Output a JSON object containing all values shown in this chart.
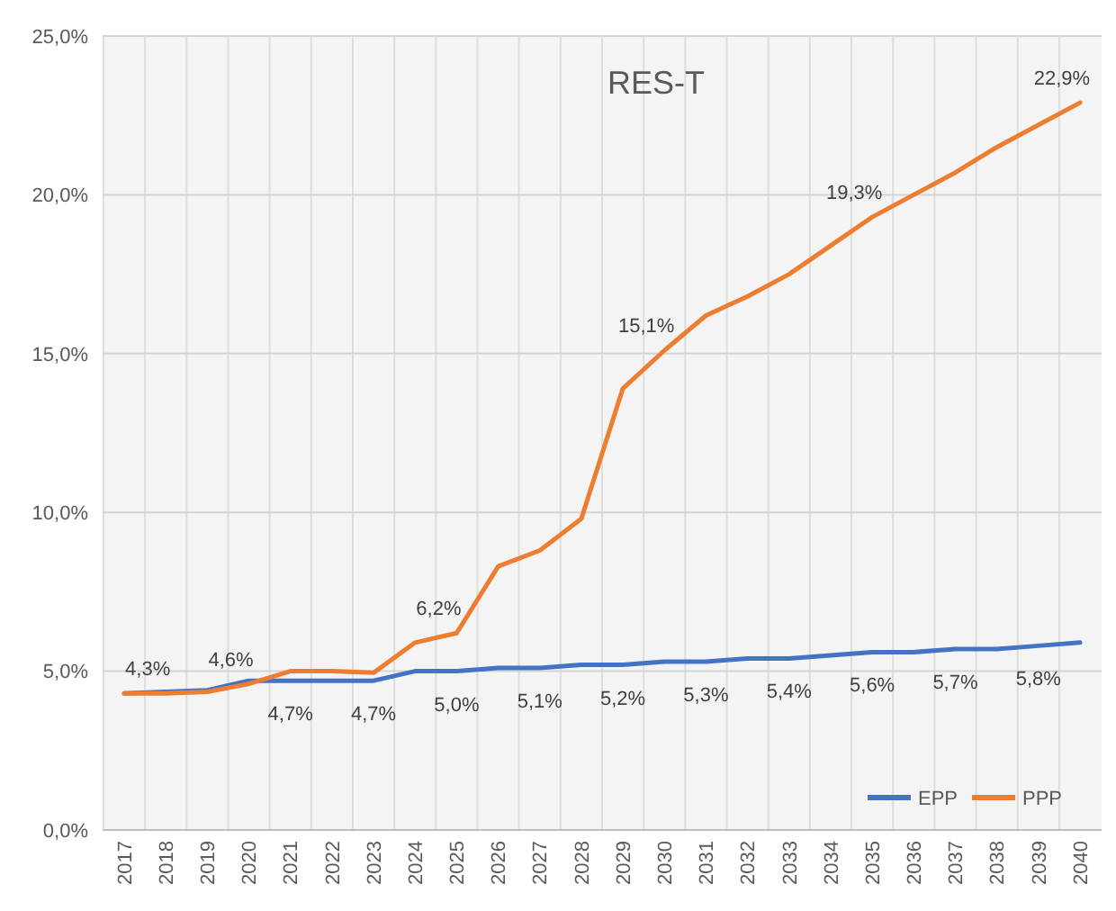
{
  "chart_data": {
    "type": "line",
    "annotations": [
      "RES-T"
    ],
    "categories": [
      "2017",
      "2018",
      "2019",
      "2020",
      "2021",
      "2022",
      "2023",
      "2024",
      "2025",
      "2026",
      "2027",
      "2028",
      "2029",
      "2030",
      "2031",
      "2032",
      "2033",
      "2034",
      "2035",
      "2036",
      "2037",
      "2038",
      "2039",
      "2040"
    ],
    "series": [
      {
        "name": "EPP",
        "color": "#4472c4",
        "values": [
          4.3,
          4.35,
          4.4,
          4.7,
          4.7,
          4.7,
          4.7,
          5.0,
          5.0,
          5.1,
          5.1,
          5.2,
          5.2,
          5.3,
          5.3,
          5.4,
          5.4,
          5.5,
          5.6,
          5.6,
          5.7,
          5.7,
          5.8,
          5.9
        ],
        "value_labels": [
          null,
          null,
          null,
          null,
          "4,7%",
          null,
          "4,7%",
          null,
          "5,0%",
          null,
          "5,1%",
          null,
          "5,2%",
          null,
          "5,3%",
          null,
          "5,4%",
          null,
          "5,6%",
          null,
          "5,7%",
          null,
          "5,8%",
          null
        ]
      },
      {
        "name": "PPP",
        "color": "#ed7d31",
        "values": [
          4.3,
          4.3,
          4.35,
          4.6,
          5.0,
          5.0,
          4.95,
          5.9,
          6.2,
          8.3,
          8.8,
          9.8,
          13.9,
          15.1,
          16.2,
          16.8,
          17.5,
          18.4,
          19.3,
          20.0,
          20.7,
          21.5,
          22.2,
          22.9
        ],
        "value_labels": [
          null,
          "4,3%",
          null,
          "4,6%",
          null,
          null,
          null,
          null,
          "6,2%",
          null,
          null,
          null,
          null,
          "15,1%",
          null,
          null,
          null,
          null,
          "19,3%",
          null,
          null,
          null,
          null,
          "22,9%"
        ]
      }
    ],
    "ylim": [
      0,
      25
    ],
    "yticks": [
      {
        "value": 0,
        "label": "0,0%"
      },
      {
        "value": 5,
        "label": "5,0%"
      },
      {
        "value": 10,
        "label": "10,0%"
      },
      {
        "value": 15,
        "label": "15,0%"
      },
      {
        "value": 20,
        "label": "20,0%"
      },
      {
        "value": 25,
        "label": "25,0%"
      }
    ],
    "grid": true,
    "legend": "bottom right",
    "marker": "none",
    "line_style": "solid"
  }
}
